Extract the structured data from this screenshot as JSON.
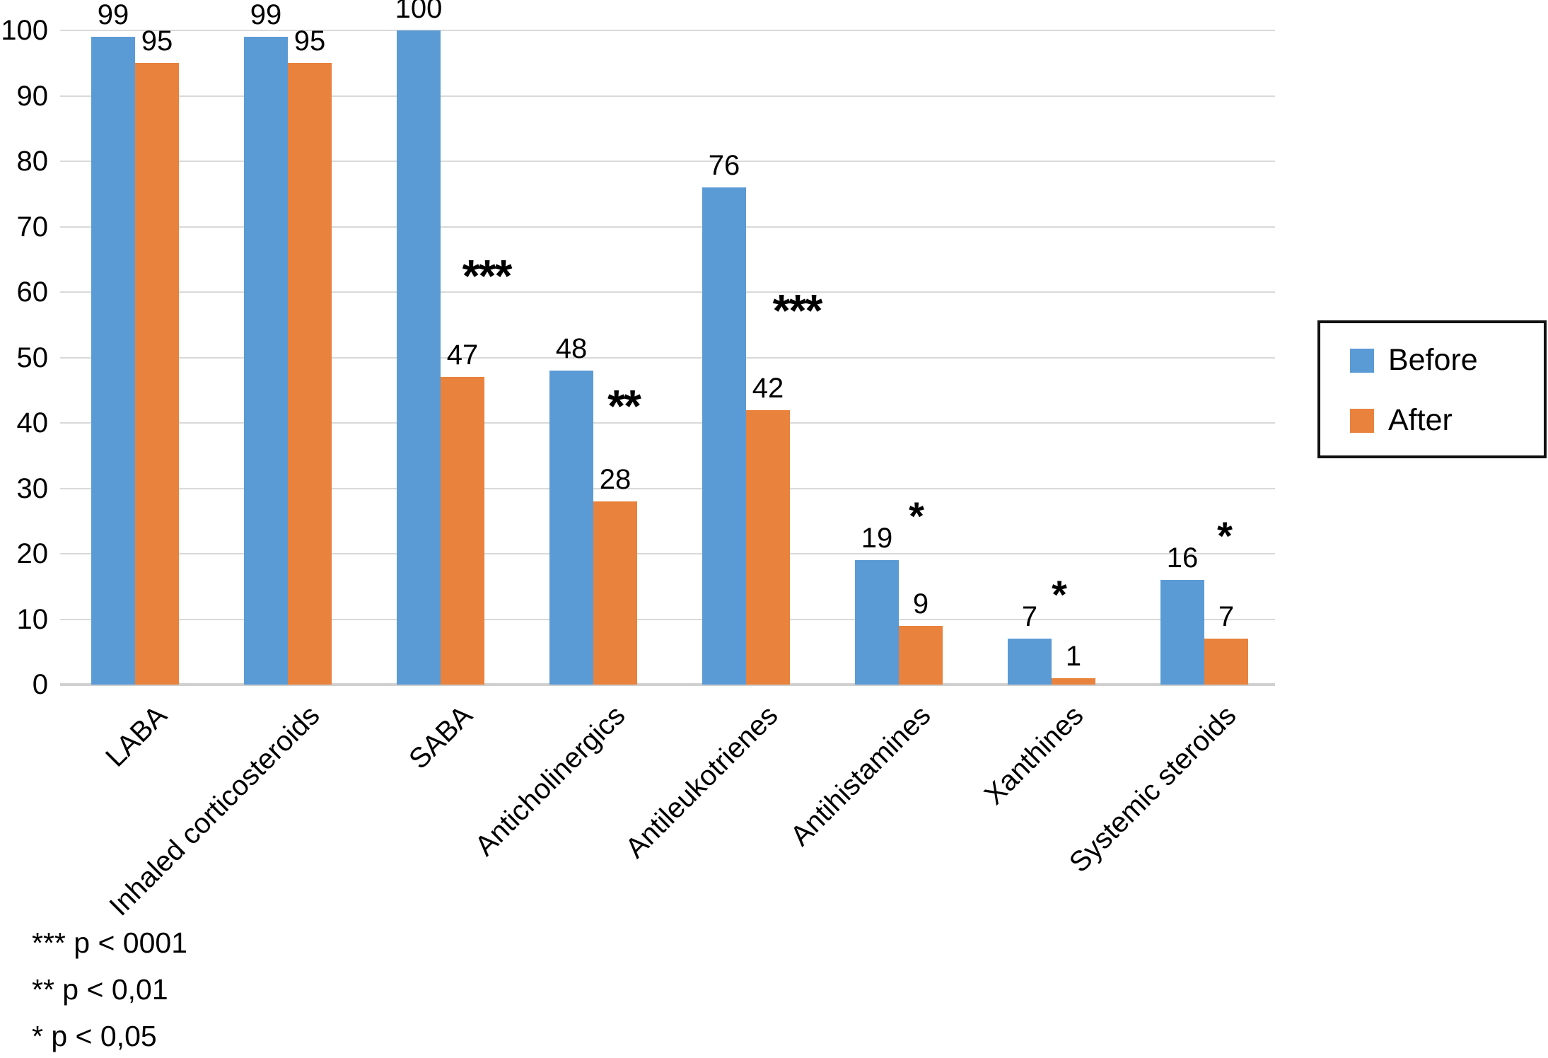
{
  "chart_data": {
    "type": "bar",
    "categories": [
      "LABA",
      "Inhaled corticosteroids",
      "SABA",
      "Anticholinergics",
      "Antileukotrienes",
      "Antihistamines",
      "Xanthines",
      "Systemic steroids"
    ],
    "series": [
      {
        "name": "Before",
        "color": "#5B9BD5",
        "values": [
          99,
          99,
          100,
          48,
          76,
          19,
          7,
          16
        ]
      },
      {
        "name": "After",
        "color": "#E8823C",
        "values": [
          95,
          95,
          47,
          28,
          42,
          9,
          1,
          7
        ]
      }
    ],
    "significance": [
      "",
      "",
      "***",
      "**",
      "***",
      "*",
      "*",
      "*"
    ],
    "title": "",
    "xlabel": "",
    "ylabel": "",
    "ylim": [
      0,
      100
    ],
    "ytick_step": 10,
    "yticks": [
      "0",
      "10",
      "20",
      "30",
      "40",
      "50",
      "60",
      "70",
      "80",
      "90",
      "100"
    ],
    "grid": true,
    "legend_position": "right",
    "bar_value_labels": true
  },
  "legend": {
    "items": [
      {
        "label": "Before",
        "color": "#5B9BD5"
      },
      {
        "label": "After",
        "color": "#E8823C"
      }
    ]
  },
  "footnotes": [
    "*** p < 0001",
    "** p < 0,01",
    "* p < 0,05"
  ],
  "colors": {
    "before": "#5B9BD5",
    "after": "#E8823C",
    "gridline": "#d9d9d9",
    "axis_line": "#d0d0d0",
    "text": "#000000"
  }
}
